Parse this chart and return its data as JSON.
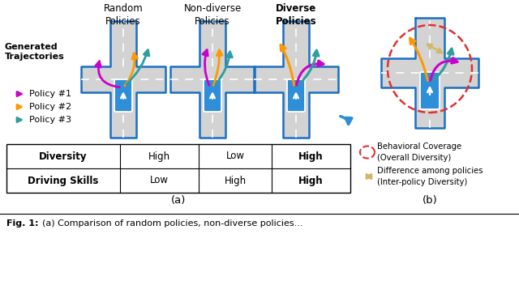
{
  "bg_color": "#ffffff",
  "road_gray": "#d3d3d3",
  "road_border": "#1a6fc4",
  "vehicle_color": "#2e8fd8",
  "policy1_color": "#cc00cc",
  "policy2_color": "#ff9900",
  "policy3_color": "#2e9e9e",
  "teal_arrow": "#2e9e9e",
  "beige_arrow": "#d4b86a",
  "title_texts": [
    "Random\nPolicies",
    "Non-diverse\nPolicies",
    "Diverse\nPolicies"
  ],
  "title_bold": [
    false,
    false,
    true
  ],
  "left_labels": [
    "Generated\nTrajectories",
    "Policy #1",
    "Policy #2",
    "Policy #3"
  ],
  "table_rows": [
    [
      "Diversity",
      "High",
      "Low",
      "High"
    ],
    [
      "Driving Skills",
      "Low",
      "High",
      "High"
    ]
  ],
  "caption_a": "(a)",
  "caption_b": "(b)",
  "fig_caption": "Fig. 1:",
  "fig_caption2": "(a) Comparison of random policies, non-diverse policies..."
}
